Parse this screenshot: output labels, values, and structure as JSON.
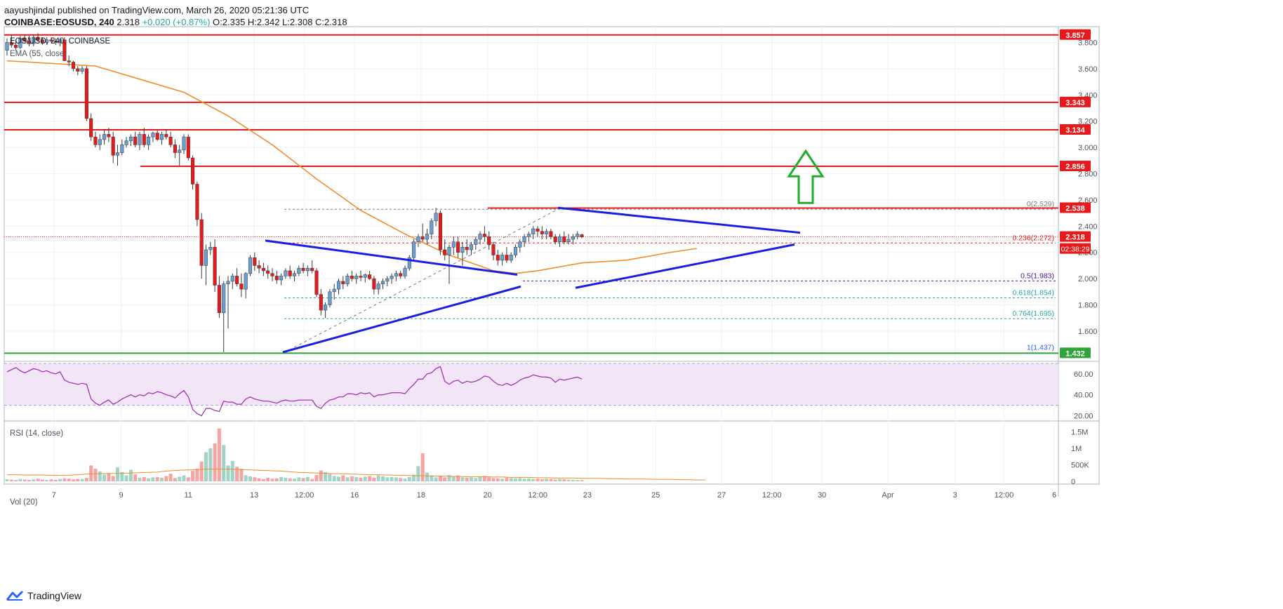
{
  "header": {
    "author": "aayushjindal",
    "published": "published on TradingView.com, March 26, 2020 05:21:36 UTC",
    "symbol": "COINBASE:EOSUSD, 240",
    "last": "2.318",
    "change": "+0.020 (+0.87%)",
    "ohlc": "O:2.335 H:2.342 L:2.308 C:2.318"
  },
  "footer": {
    "brand": "TradingView"
  },
  "colors": {
    "up": "#6a9fd4",
    "down": "#e8191b",
    "resistance": "#e8191b",
    "support": "#2ea43a",
    "trendline": "#1a1ee0",
    "ma": "#ef8c2b",
    "rsi": "#9c27b0",
    "arrow": "#1fae2c"
  },
  "chart_data": [
    {
      "type": "candlestick",
      "title": "EOS/USD, 240, COINBASE",
      "indicator": "EMA (55, close)",
      "x_ticks": [
        "7",
        "9",
        "11",
        "13",
        "12:00",
        "16",
        "18",
        "20",
        "12:00",
        "23",
        "25",
        "27",
        "12:00",
        "30",
        "Apr",
        "3",
        "12:00",
        "6"
      ],
      "ylim": [
        1.37,
        3.92
      ],
      "y_ticks": [
        1.6,
        1.8,
        2.0,
        2.2,
        2.4,
        2.6,
        2.8,
        3.0,
        3.2,
        3.4,
        3.6,
        3.8
      ],
      "y_tick_labels": [
        "1.600",
        "1.800",
        "2.000",
        "2.200",
        "2.400",
        "2.600",
        "2.800",
        "3.000",
        "3.200",
        "3.400",
        "3.600",
        "3.800"
      ],
      "horizontal_levels": [
        {
          "label": "3.857",
          "value": 3.857,
          "color": "red"
        },
        {
          "label": "3.343",
          "value": 3.343,
          "color": "red"
        },
        {
          "label": "3.134",
          "value": 3.134,
          "color": "red"
        },
        {
          "label": "2.856",
          "value": 2.856,
          "color": "red"
        },
        {
          "label": "2.538",
          "value": 2.538,
          "color": "red"
        },
        {
          "label": "2.318",
          "value": 2.318,
          "color": "red"
        },
        {
          "label": "1.432",
          "value": 1.432,
          "color": "green"
        }
      ],
      "price_label": "2.318",
      "countdown": "02:38:29",
      "fibonacci": [
        {
          "label": "0(2.529)",
          "value": 2.529
        },
        {
          "label": "0.236(2.272)",
          "value": 2.272
        },
        {
          "label": "0.5(1.983)",
          "value": 1.983
        },
        {
          "label": "0.618(1.854)",
          "value": 1.854
        },
        {
          "label": "0.764(1.695)",
          "value": 1.695
        },
        {
          "label": "1(1.437)",
          "value": 1.437
        }
      ],
      "ohlc": [
        [
          3.74,
          3.83,
          3.7,
          3.8
        ],
        [
          3.8,
          3.86,
          3.76,
          3.78
        ],
        [
          3.78,
          3.82,
          3.74,
          3.76
        ],
        [
          3.76,
          3.85,
          3.75,
          3.83
        ],
        [
          3.83,
          3.86,
          3.8,
          3.81
        ],
        [
          3.81,
          3.85,
          3.77,
          3.79
        ],
        [
          3.79,
          3.86,
          3.77,
          3.84
        ],
        [
          3.84,
          3.87,
          3.8,
          3.82
        ],
        [
          3.82,
          3.84,
          3.78,
          3.8
        ],
        [
          3.8,
          3.84,
          3.78,
          3.82
        ],
        [
          3.82,
          3.84,
          3.8,
          3.81
        ],
        [
          3.81,
          3.83,
          3.78,
          3.8
        ],
        [
          3.8,
          3.83,
          3.77,
          3.82
        ],
        [
          3.82,
          3.84,
          3.66,
          3.66
        ],
        [
          3.66,
          3.7,
          3.62,
          3.65
        ],
        [
          3.65,
          3.66,
          3.58,
          3.6
        ],
        [
          3.6,
          3.62,
          3.55,
          3.58
        ],
        [
          3.58,
          3.62,
          3.56,
          3.6
        ],
        [
          3.6,
          3.62,
          3.2,
          3.22
        ],
        [
          3.22,
          3.26,
          3.05,
          3.08
        ],
        [
          3.08,
          3.12,
          3.0,
          3.02
        ],
        [
          3.02,
          3.1,
          2.98,
          3.06
        ],
        [
          3.06,
          3.14,
          3.02,
          3.1
        ],
        [
          3.1,
          3.15,
          3.04,
          3.08
        ],
        [
          3.08,
          3.12,
          2.88,
          2.94
        ],
        [
          2.94,
          3.02,
          2.86,
          2.96
        ],
        [
          2.96,
          3.06,
          2.94,
          3.02
        ],
        [
          3.02,
          3.08,
          3.0,
          3.05
        ],
        [
          3.05,
          3.1,
          3.01,
          3.08
        ],
        [
          3.08,
          3.12,
          3.0,
          3.02
        ],
        [
          3.02,
          3.12,
          2.98,
          3.1
        ],
        [
          3.1,
          3.15,
          3.0,
          3.02
        ],
        [
          3.02,
          3.1,
          2.98,
          3.08
        ],
        [
          3.08,
          3.12,
          3.04,
          3.11
        ],
        [
          3.11,
          3.13,
          3.05,
          3.06
        ],
        [
          3.06,
          3.12,
          3.02,
          3.1
        ],
        [
          3.1,
          3.14,
          3.06,
          3.08
        ],
        [
          3.08,
          3.12,
          3.0,
          3.02
        ],
        [
          3.02,
          3.06,
          2.92,
          2.96
        ],
        [
          2.96,
          3.02,
          2.86,
          2.98
        ],
        [
          2.98,
          3.1,
          2.95,
          3.08
        ],
        [
          3.08,
          3.1,
          2.9,
          2.92
        ],
        [
          2.92,
          2.94,
          2.68,
          2.72
        ],
        [
          2.72,
          2.74,
          2.4,
          2.45
        ],
        [
          2.45,
          2.5,
          2.0,
          2.1
        ],
        [
          2.1,
          2.26,
          1.95,
          2.22
        ],
        [
          2.22,
          2.28,
          2.18,
          2.24
        ],
        [
          2.24,
          2.3,
          1.9,
          1.95
        ],
        [
          1.95,
          2.02,
          1.7,
          1.74
        ],
        [
          1.74,
          1.98,
          1.44,
          1.96
        ],
        [
          1.96,
          2.02,
          1.62,
          1.98
        ],
        [
          1.98,
          2.04,
          1.92,
          2.02
        ],
        [
          2.02,
          2.08,
          1.94,
          1.96
        ],
        [
          1.96,
          2.04,
          1.86,
          1.92
        ],
        [
          1.92,
          2.05,
          1.85,
          2.04
        ],
        [
          2.04,
          2.18,
          2.02,
          2.16
        ],
        [
          2.16,
          2.2,
          2.06,
          2.1
        ],
        [
          2.1,
          2.14,
          2.04,
          2.08
        ],
        [
          2.08,
          2.12,
          2.02,
          2.06
        ],
        [
          2.06,
          2.1,
          2.0,
          2.04
        ],
        [
          2.04,
          2.08,
          1.98,
          2.02
        ],
        [
          2.02,
          2.06,
          1.96,
          1.99
        ],
        [
          1.99,
          2.04,
          1.95,
          2.02
        ],
        [
          2.02,
          2.08,
          2.0,
          2.06
        ],
        [
          2.06,
          2.1,
          2.0,
          2.02
        ],
        [
          2.02,
          2.06,
          1.98,
          2.04
        ],
        [
          2.04,
          2.1,
          2.02,
          2.08
        ],
        [
          2.08,
          2.12,
          2.04,
          2.06
        ],
        [
          2.06,
          2.1,
          2.02,
          2.08
        ],
        [
          2.08,
          2.14,
          2.04,
          2.06
        ],
        [
          2.06,
          2.08,
          1.86,
          1.88
        ],
        [
          1.88,
          1.92,
          1.72,
          1.76
        ],
        [
          1.76,
          1.82,
          1.7,
          1.8
        ],
        [
          1.8,
          1.92,
          1.78,
          1.9
        ],
        [
          1.9,
          1.96,
          1.84,
          1.92
        ],
        [
          1.92,
          2.0,
          1.88,
          1.98
        ],
        [
          1.98,
          2.02,
          1.92,
          1.96
        ],
        [
          1.96,
          2.04,
          1.94,
          2.02
        ],
        [
          2.02,
          2.06,
          1.98,
          2.0
        ],
        [
          2.0,
          2.04,
          1.96,
          2.02
        ],
        [
          2.02,
          2.06,
          1.98,
          2.01
        ],
        [
          2.01,
          2.04,
          1.97,
          2.03
        ],
        [
          2.03,
          2.06,
          1.99,
          2.0
        ],
        [
          2.0,
          2.02,
          1.88,
          1.92
        ],
        [
          1.92,
          1.98,
          1.88,
          1.96
        ],
        [
          1.96,
          2.0,
          1.92,
          1.98
        ],
        [
          1.98,
          2.02,
          1.94,
          2.0
        ],
        [
          2.0,
          2.04,
          1.96,
          2.02
        ],
        [
          2.02,
          2.06,
          1.98,
          2.04
        ],
        [
          2.04,
          2.06,
          2.0,
          2.02
        ],
        [
          2.02,
          2.1,
          2.0,
          2.08
        ],
        [
          2.08,
          2.18,
          2.06,
          2.16
        ],
        [
          2.16,
          2.3,
          2.14,
          2.28
        ],
        [
          2.28,
          2.34,
          2.24,
          2.32
        ],
        [
          2.32,
          2.42,
          2.28,
          2.3
        ],
        [
          2.3,
          2.38,
          2.26,
          2.34
        ],
        [
          2.34,
          2.46,
          2.3,
          2.44
        ],
        [
          2.44,
          2.54,
          2.4,
          2.5
        ],
        [
          2.5,
          2.52,
          2.18,
          2.22
        ],
        [
          2.22,
          2.3,
          2.14,
          2.18
        ],
        [
          2.18,
          2.26,
          1.96,
          2.24
        ],
        [
          2.24,
          2.32,
          2.18,
          2.28
        ],
        [
          2.28,
          2.32,
          2.16,
          2.2
        ],
        [
          2.2,
          2.28,
          2.1,
          2.24
        ],
        [
          2.24,
          2.3,
          2.18,
          2.22
        ],
        [
          2.22,
          2.28,
          2.18,
          2.26
        ],
        [
          2.26,
          2.32,
          2.22,
          2.3
        ],
        [
          2.3,
          2.36,
          2.26,
          2.34
        ],
        [
          2.34,
          2.4,
          2.28,
          2.32
        ],
        [
          2.32,
          2.36,
          2.22,
          2.26
        ],
        [
          2.26,
          2.28,
          2.14,
          2.18
        ],
        [
          2.18,
          2.22,
          2.1,
          2.14
        ],
        [
          2.14,
          2.2,
          2.1,
          2.18
        ],
        [
          2.18,
          2.24,
          2.12,
          2.14
        ],
        [
          2.14,
          2.2,
          2.12,
          2.18
        ],
        [
          2.18,
          2.26,
          2.16,
          2.24
        ],
        [
          2.24,
          2.3,
          2.2,
          2.28
        ],
        [
          2.28,
          2.34,
          2.24,
          2.32
        ],
        [
          2.32,
          2.36,
          2.28,
          2.34
        ],
        [
          2.34,
          2.4,
          2.3,
          2.38
        ],
        [
          2.38,
          2.4,
          2.32,
          2.36
        ],
        [
          2.36,
          2.4,
          2.3,
          2.34
        ],
        [
          2.34,
          2.38,
          2.3,
          2.36
        ],
        [
          2.36,
          2.38,
          2.3,
          2.32
        ],
        [
          2.32,
          2.34,
          2.26,
          2.28
        ],
        [
          2.28,
          2.34,
          2.24,
          2.32
        ],
        [
          2.32,
          2.36,
          2.26,
          2.28
        ],
        [
          2.28,
          2.34,
          2.26,
          2.3
        ],
        [
          2.3,
          2.34,
          2.26,
          2.32
        ],
        [
          2.32,
          2.36,
          2.3,
          2.34
        ],
        [
          2.335,
          2.342,
          2.308,
          2.318
        ]
      ],
      "ema": [
        [
          0,
          3.66
        ],
        [
          10,
          3.64
        ],
        [
          20,
          3.62
        ],
        [
          30,
          3.52
        ],
        [
          40,
          3.42
        ],
        [
          50,
          3.24
        ],
        [
          60,
          3.02
        ],
        [
          70,
          2.76
        ],
        [
          80,
          2.52
        ],
        [
          90,
          2.34
        ],
        [
          100,
          2.18
        ],
        [
          110,
          2.06
        ],
        [
          115,
          2.04
        ],
        [
          120,
          2.06
        ],
        [
          130,
          2.12
        ],
        [
          140,
          2.14
        ],
        [
          150,
          2.2
        ],
        [
          156,
          2.23
        ]
      ]
    },
    {
      "type": "line",
      "title": "RSI (14, close)",
      "ylim": [
        15,
        72
      ],
      "y_ticks": [
        20,
        40,
        60
      ],
      "y_tick_labels": [
        "20.00",
        "40.00",
        "60.00"
      ],
      "band": [
        30,
        70
      ],
      "values": [
        62,
        64,
        66,
        63,
        61,
        63,
        65,
        64,
        62,
        63,
        61,
        60,
        62,
        54,
        52,
        51,
        50,
        51,
        50,
        36,
        32,
        30,
        33,
        35,
        31,
        33,
        36,
        38,
        40,
        38,
        40,
        39,
        42,
        41,
        43,
        42,
        40,
        39,
        37,
        41,
        44,
        38,
        26,
        22,
        20,
        27,
        27,
        25,
        24,
        34,
        33,
        33,
        31,
        31,
        36,
        38,
        36,
        35,
        34,
        34,
        33,
        32,
        34,
        35,
        34,
        34,
        35,
        35,
        35,
        35,
        29,
        27,
        32,
        35,
        36,
        38,
        38,
        41,
        41,
        40,
        42,
        41,
        42,
        38,
        40,
        40,
        41,
        42,
        42,
        42,
        41,
        46,
        50,
        55,
        55,
        60,
        61,
        65,
        67,
        53,
        50,
        53,
        54,
        51,
        53,
        52,
        53,
        55,
        58,
        57,
        53,
        50,
        49,
        51,
        49,
        51,
        54,
        56,
        57,
        59,
        58,
        57,
        57,
        56,
        52,
        55,
        54,
        55,
        56,
        57,
        55
      ]
    },
    {
      "type": "bar",
      "title": "Vol (20)",
      "ylim": [
        0,
        1700000
      ],
      "y_ticks": [
        0,
        500000,
        1000000,
        1500000
      ],
      "y_tick_labels": [
        "0",
        "500K",
        "1M",
        "1.5M"
      ],
      "values": [
        60,
        50,
        40,
        70,
        55,
        45,
        60,
        80,
        50,
        40,
        60,
        45,
        70,
        90,
        80,
        60,
        75,
        70,
        100,
        480,
        380,
        300,
        200,
        250,
        160,
        420,
        280,
        180,
        350,
        210,
        110,
        130,
        90,
        120,
        130,
        110,
        160,
        230,
        100,
        140,
        180,
        120,
        320,
        380,
        600,
        880,
        1000,
        1150,
        1600,
        1100,
        480,
        620,
        440,
        380,
        180,
        150,
        120,
        90,
        70,
        110,
        80,
        90,
        130,
        110,
        90,
        80,
        120,
        100,
        130,
        70,
        190,
        330,
        280,
        220,
        160,
        140,
        180,
        120,
        150,
        130,
        110,
        140,
        160,
        110,
        180,
        150,
        120,
        130,
        120,
        100,
        80,
        130,
        200,
        460,
        850,
        260,
        180,
        120,
        160,
        120,
        190,
        140,
        180,
        120,
        110,
        120,
        100,
        140,
        160,
        120,
        100,
        90,
        80,
        110,
        100,
        90,
        100,
        80,
        90,
        70,
        80,
        60,
        80,
        70,
        50,
        70,
        60,
        50,
        45,
        40,
        35
      ],
      "ma": [
        200,
        200,
        190,
        190,
        190,
        180,
        180,
        180,
        200,
        220,
        230,
        230,
        240,
        240,
        250,
        260,
        270,
        280,
        310,
        330,
        340,
        350,
        360,
        370,
        370,
        370,
        360,
        350,
        340,
        330,
        320,
        310,
        290,
        270,
        260,
        250,
        240,
        230,
        230,
        220,
        210,
        200,
        200,
        190,
        180,
        180,
        170,
        170,
        160,
        160,
        150,
        150,
        140,
        140,
        140,
        130,
        130,
        120,
        120,
        120,
        110,
        110,
        100,
        100,
        100,
        90,
        90,
        90,
        80,
        80,
        70,
        70,
        70,
        60,
        60,
        60,
        50,
        50,
        40,
        40
      ]
    }
  ]
}
